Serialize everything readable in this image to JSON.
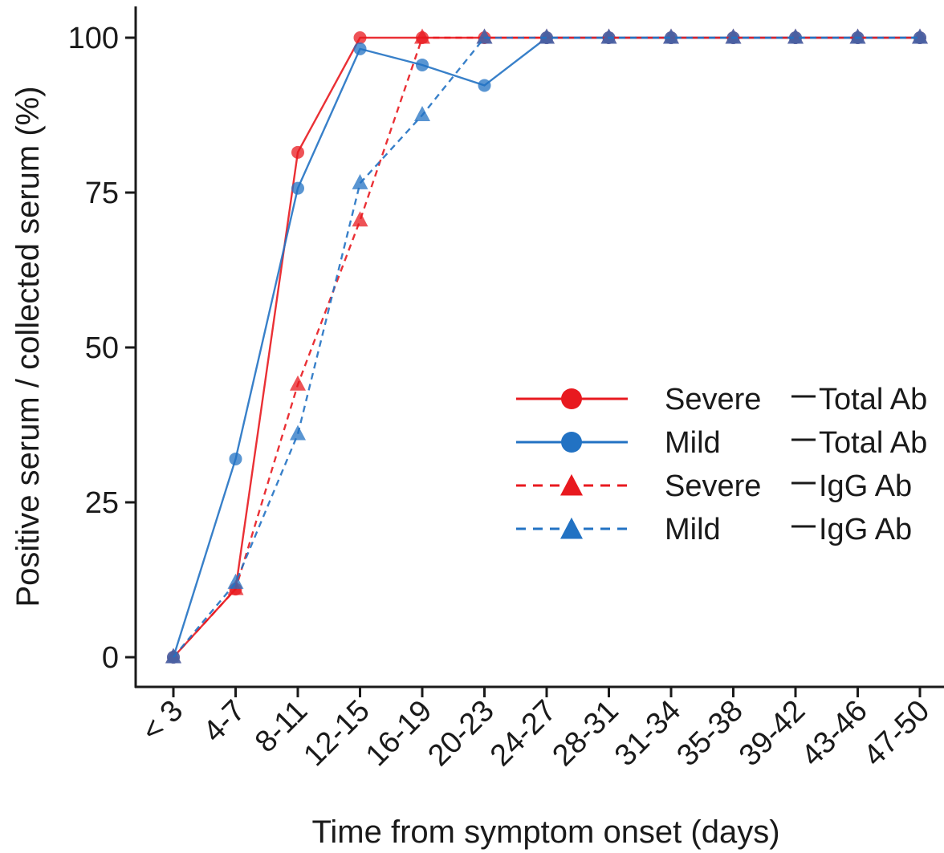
{
  "chart_data": {
    "type": "line",
    "xlabel": "Time from symptom onset (days)",
    "ylabel": "Positive serum / collected serum (%)",
    "categories": [
      "< 3",
      "4-7",
      "8-11",
      "12-15",
      "16-19",
      "20-23",
      "24-27",
      "28-31",
      "31-34",
      "35-38",
      "39-42",
      "43-46",
      "47-50"
    ],
    "ylim": [
      -5,
      105
    ],
    "yticks": [
      0,
      25,
      50,
      75,
      100
    ],
    "grid": false,
    "legend_position": "right",
    "series": [
      {
        "name": "Severe",
        "antibody": "Total Ab",
        "color": "#e8191f",
        "marker": "circle",
        "dashed": false,
        "values": [
          0,
          11,
          81.5,
          100,
          100,
          100,
          100,
          100,
          100,
          100,
          100,
          100,
          100
        ]
      },
      {
        "name": "Mild",
        "antibody": "Total Ab",
        "color": "#2272c3",
        "marker": "circle",
        "dashed": false,
        "values": [
          0,
          32,
          75.7,
          98.2,
          95.6,
          92.3,
          100,
          100,
          100,
          100,
          100,
          100,
          100
        ]
      },
      {
        "name": "Severe",
        "antibody": "IgG Ab",
        "color": "#e8191f",
        "marker": "triangle",
        "dashed": true,
        "values": [
          0,
          11,
          44,
          70.5,
          100,
          100,
          100,
          100,
          100,
          100,
          100,
          100,
          100
        ]
      },
      {
        "name": "Mild",
        "antibody": "IgG Ab",
        "color": "#2272c3",
        "marker": "triangle",
        "dashed": true,
        "values": [
          0,
          12,
          36,
          76.5,
          87.5,
          100,
          100,
          100,
          100,
          100,
          100,
          100,
          100
        ]
      }
    ]
  }
}
